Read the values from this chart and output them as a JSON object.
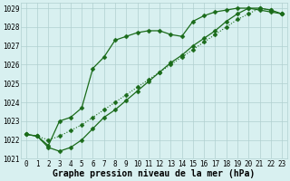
{
  "series1": {
    "x": [
      0,
      1,
      2,
      3,
      4,
      5,
      6,
      7,
      8,
      9,
      10,
      11,
      12,
      13,
      14,
      15,
      16,
      17,
      18,
      19,
      20,
      21,
      22,
      23
    ],
    "y": [
      1022.3,
      1022.2,
      1021.7,
      1023.0,
      1023.2,
      1023.7,
      1025.8,
      1026.4,
      1027.3,
      1027.5,
      1027.7,
      1027.8,
      1027.8,
      1027.6,
      1027.5,
      1028.3,
      1028.6,
      1028.8,
      1028.9,
      1029.0,
      1029.0,
      1028.9,
      1028.8,
      1028.7
    ]
  },
  "series2": {
    "x": [
      0,
      1,
      2,
      3,
      4,
      5,
      6,
      7,
      8,
      9,
      10,
      11,
      12,
      13,
      14,
      15,
      16,
      17,
      18,
      19,
      20,
      21,
      22,
      23
    ],
    "y": [
      1022.3,
      1022.2,
      1022.0,
      1022.2,
      1022.5,
      1022.8,
      1023.2,
      1023.6,
      1024.0,
      1024.4,
      1024.8,
      1025.2,
      1025.6,
      1026.0,
      1026.4,
      1026.8,
      1027.2,
      1027.6,
      1028.0,
      1028.4,
      1028.7,
      1029.0,
      1028.9,
      1028.7
    ]
  },
  "series3": {
    "x": [
      0,
      1,
      2,
      3,
      4,
      5,
      6,
      7,
      8,
      9,
      10,
      11,
      12,
      13,
      14,
      15,
      16,
      17,
      18,
      19,
      20,
      21,
      22,
      23
    ],
    "y": [
      1022.3,
      1022.2,
      1021.6,
      1021.4,
      1021.6,
      1022.0,
      1022.6,
      1023.2,
      1023.6,
      1024.1,
      1024.6,
      1025.1,
      1025.6,
      1026.1,
      1026.5,
      1027.0,
      1027.4,
      1027.8,
      1028.3,
      1028.7,
      1029.0,
      1029.0,
      1028.9,
      1028.7
    ]
  },
  "line_color": "#1a6b1a",
  "marker_color": "#1a6b1a",
  "bg_color": "#d8f0f0",
  "grid_color": "#b0d0d0",
  "xlabel": "Graphe pression niveau de la mer (hPa)",
  "xlim": [
    -0.5,
    23.5
  ],
  "ylim": [
    1021.0,
    1029.3
  ],
  "yticks": [
    1021,
    1022,
    1023,
    1024,
    1025,
    1026,
    1027,
    1028,
    1029
  ],
  "xticks": [
    0,
    1,
    2,
    3,
    4,
    5,
    6,
    7,
    8,
    9,
    10,
    11,
    12,
    13,
    14,
    15,
    16,
    17,
    18,
    19,
    20,
    21,
    22,
    23
  ],
  "tick_fontsize": 5.5,
  "xlabel_fontsize": 7.0,
  "marker_size": 2.5,
  "line_width": 0.9
}
